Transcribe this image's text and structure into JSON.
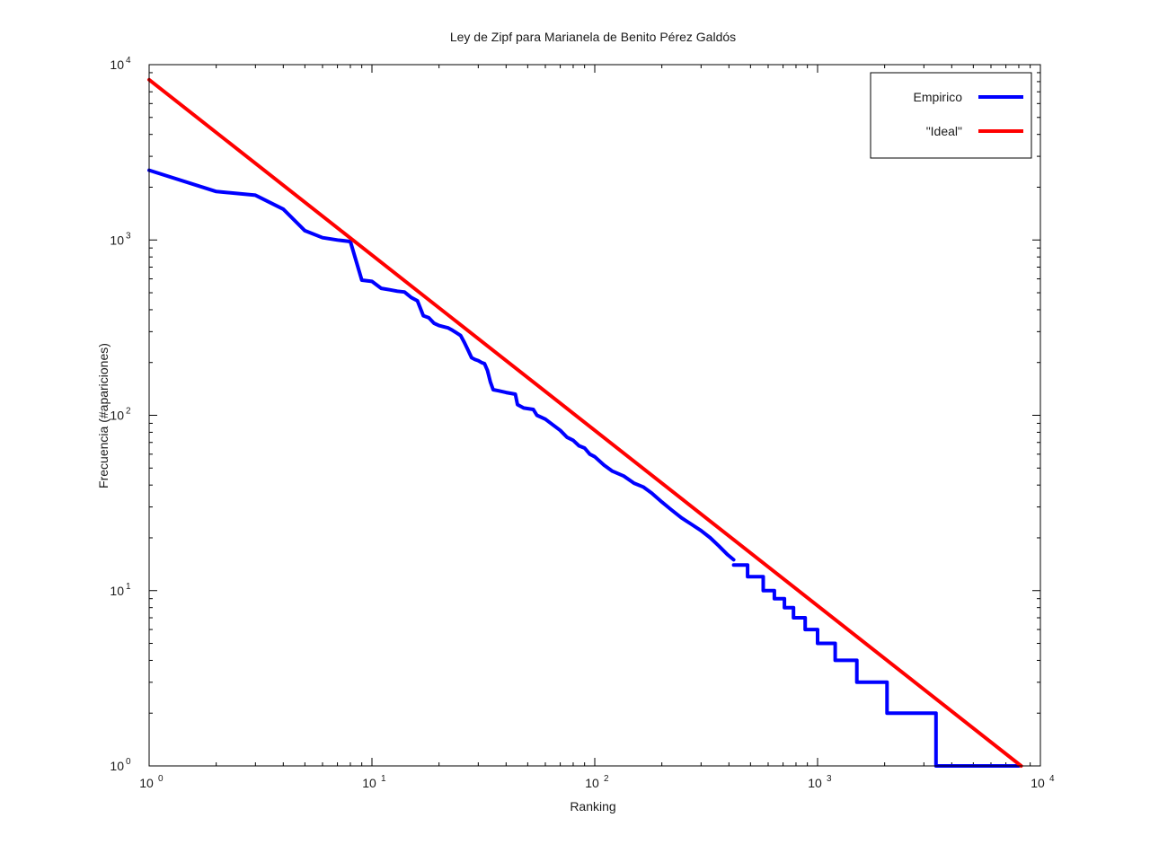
{
  "chart_data": {
    "type": "line",
    "title": "Ley de Zipf para Marianela de Benito Pérez Galdós",
    "xlabel": "Ranking",
    "ylabel": "Frecuencia (#apariciones)",
    "xscale": "log",
    "yscale": "log",
    "xlim": [
      1,
      10000
    ],
    "ylim": [
      1,
      10000
    ],
    "x_ticks": [
      {
        "base": "10",
        "exp": "0",
        "value": 1
      },
      {
        "base": "10",
        "exp": "1",
        "value": 10
      },
      {
        "base": "10",
        "exp": "2",
        "value": 100
      },
      {
        "base": "10",
        "exp": "3",
        "value": 1000
      },
      {
        "base": "10",
        "exp": "4",
        "value": 10000
      }
    ],
    "y_ticks": [
      {
        "base": "10",
        "exp": "0",
        "value": 1
      },
      {
        "base": "10",
        "exp": "1",
        "value": 10
      },
      {
        "base": "10",
        "exp": "2",
        "value": 100
      },
      {
        "base": "10",
        "exp": "3",
        "value": 1000
      },
      {
        "base": "10",
        "exp": "4",
        "value": 10000
      }
    ],
    "grid": false,
    "legend_position": "top-right",
    "series": [
      {
        "name": "Empirico",
        "color": "#0000ff",
        "step": false,
        "points": [
          [
            1,
            2500
          ],
          [
            2,
            1890
          ],
          [
            3,
            1800
          ],
          [
            4,
            1500
          ],
          [
            5,
            1130
          ],
          [
            6,
            1030
          ],
          [
            7,
            1000
          ],
          [
            8,
            980
          ],
          [
            9,
            590
          ],
          [
            10,
            580
          ],
          [
            11,
            530
          ],
          [
            12,
            520
          ],
          [
            13,
            510
          ],
          [
            14,
            505
          ],
          [
            15,
            470
          ],
          [
            16,
            450
          ],
          [
            17,
            370
          ],
          [
            18,
            360
          ],
          [
            19,
            335
          ],
          [
            20,
            325
          ],
          [
            21,
            320
          ],
          [
            22,
            315
          ],
          [
            23,
            305
          ],
          [
            24,
            295
          ],
          [
            25,
            285
          ],
          [
            26,
            260
          ],
          [
            27,
            235
          ],
          [
            28,
            213
          ],
          [
            29,
            208
          ],
          [
            30,
            205
          ],
          [
            31,
            200
          ],
          [
            32,
            197
          ],
          [
            33,
            180
          ],
          [
            34,
            155
          ],
          [
            35,
            140
          ],
          [
            37,
            138
          ],
          [
            40,
            135
          ],
          [
            44,
            132
          ],
          [
            45,
            115
          ],
          [
            48,
            110
          ],
          [
            53,
            108
          ],
          [
            55,
            100
          ],
          [
            60,
            95
          ],
          [
            65,
            88
          ],
          [
            70,
            82
          ],
          [
            75,
            75
          ],
          [
            80,
            72
          ],
          [
            85,
            67
          ],
          [
            90,
            65
          ],
          [
            95,
            60
          ],
          [
            100,
            58
          ],
          [
            110,
            52
          ],
          [
            120,
            48
          ],
          [
            135,
            45
          ],
          [
            150,
            41
          ],
          [
            165,
            39
          ],
          [
            180,
            36
          ],
          [
            200,
            32
          ],
          [
            220,
            29
          ],
          [
            245,
            26
          ],
          [
            270,
            24
          ],
          [
            300,
            22
          ],
          [
            330,
            20
          ],
          [
            360,
            18
          ],
          [
            395,
            16
          ],
          [
            420,
            15
          ]
        ]
      },
      {
        "name": "",
        "color": "#0000ff",
        "step": true,
        "points": [
          [
            420,
            14
          ],
          [
            485,
            12
          ],
          [
            570,
            10
          ],
          [
            640,
            9
          ],
          [
            710,
            8
          ],
          [
            780,
            7
          ],
          [
            880,
            6
          ],
          [
            1000,
            5
          ],
          [
            1200,
            4
          ],
          [
            1500,
            3
          ],
          [
            2050,
            2
          ],
          [
            3400,
            1
          ],
          [
            8000,
            1
          ]
        ]
      },
      {
        "name": "\"Ideal\"",
        "color": "#ff0000",
        "step": false,
        "points": [
          [
            1,
            8200
          ],
          [
            8200,
            1
          ]
        ]
      }
    ]
  }
}
